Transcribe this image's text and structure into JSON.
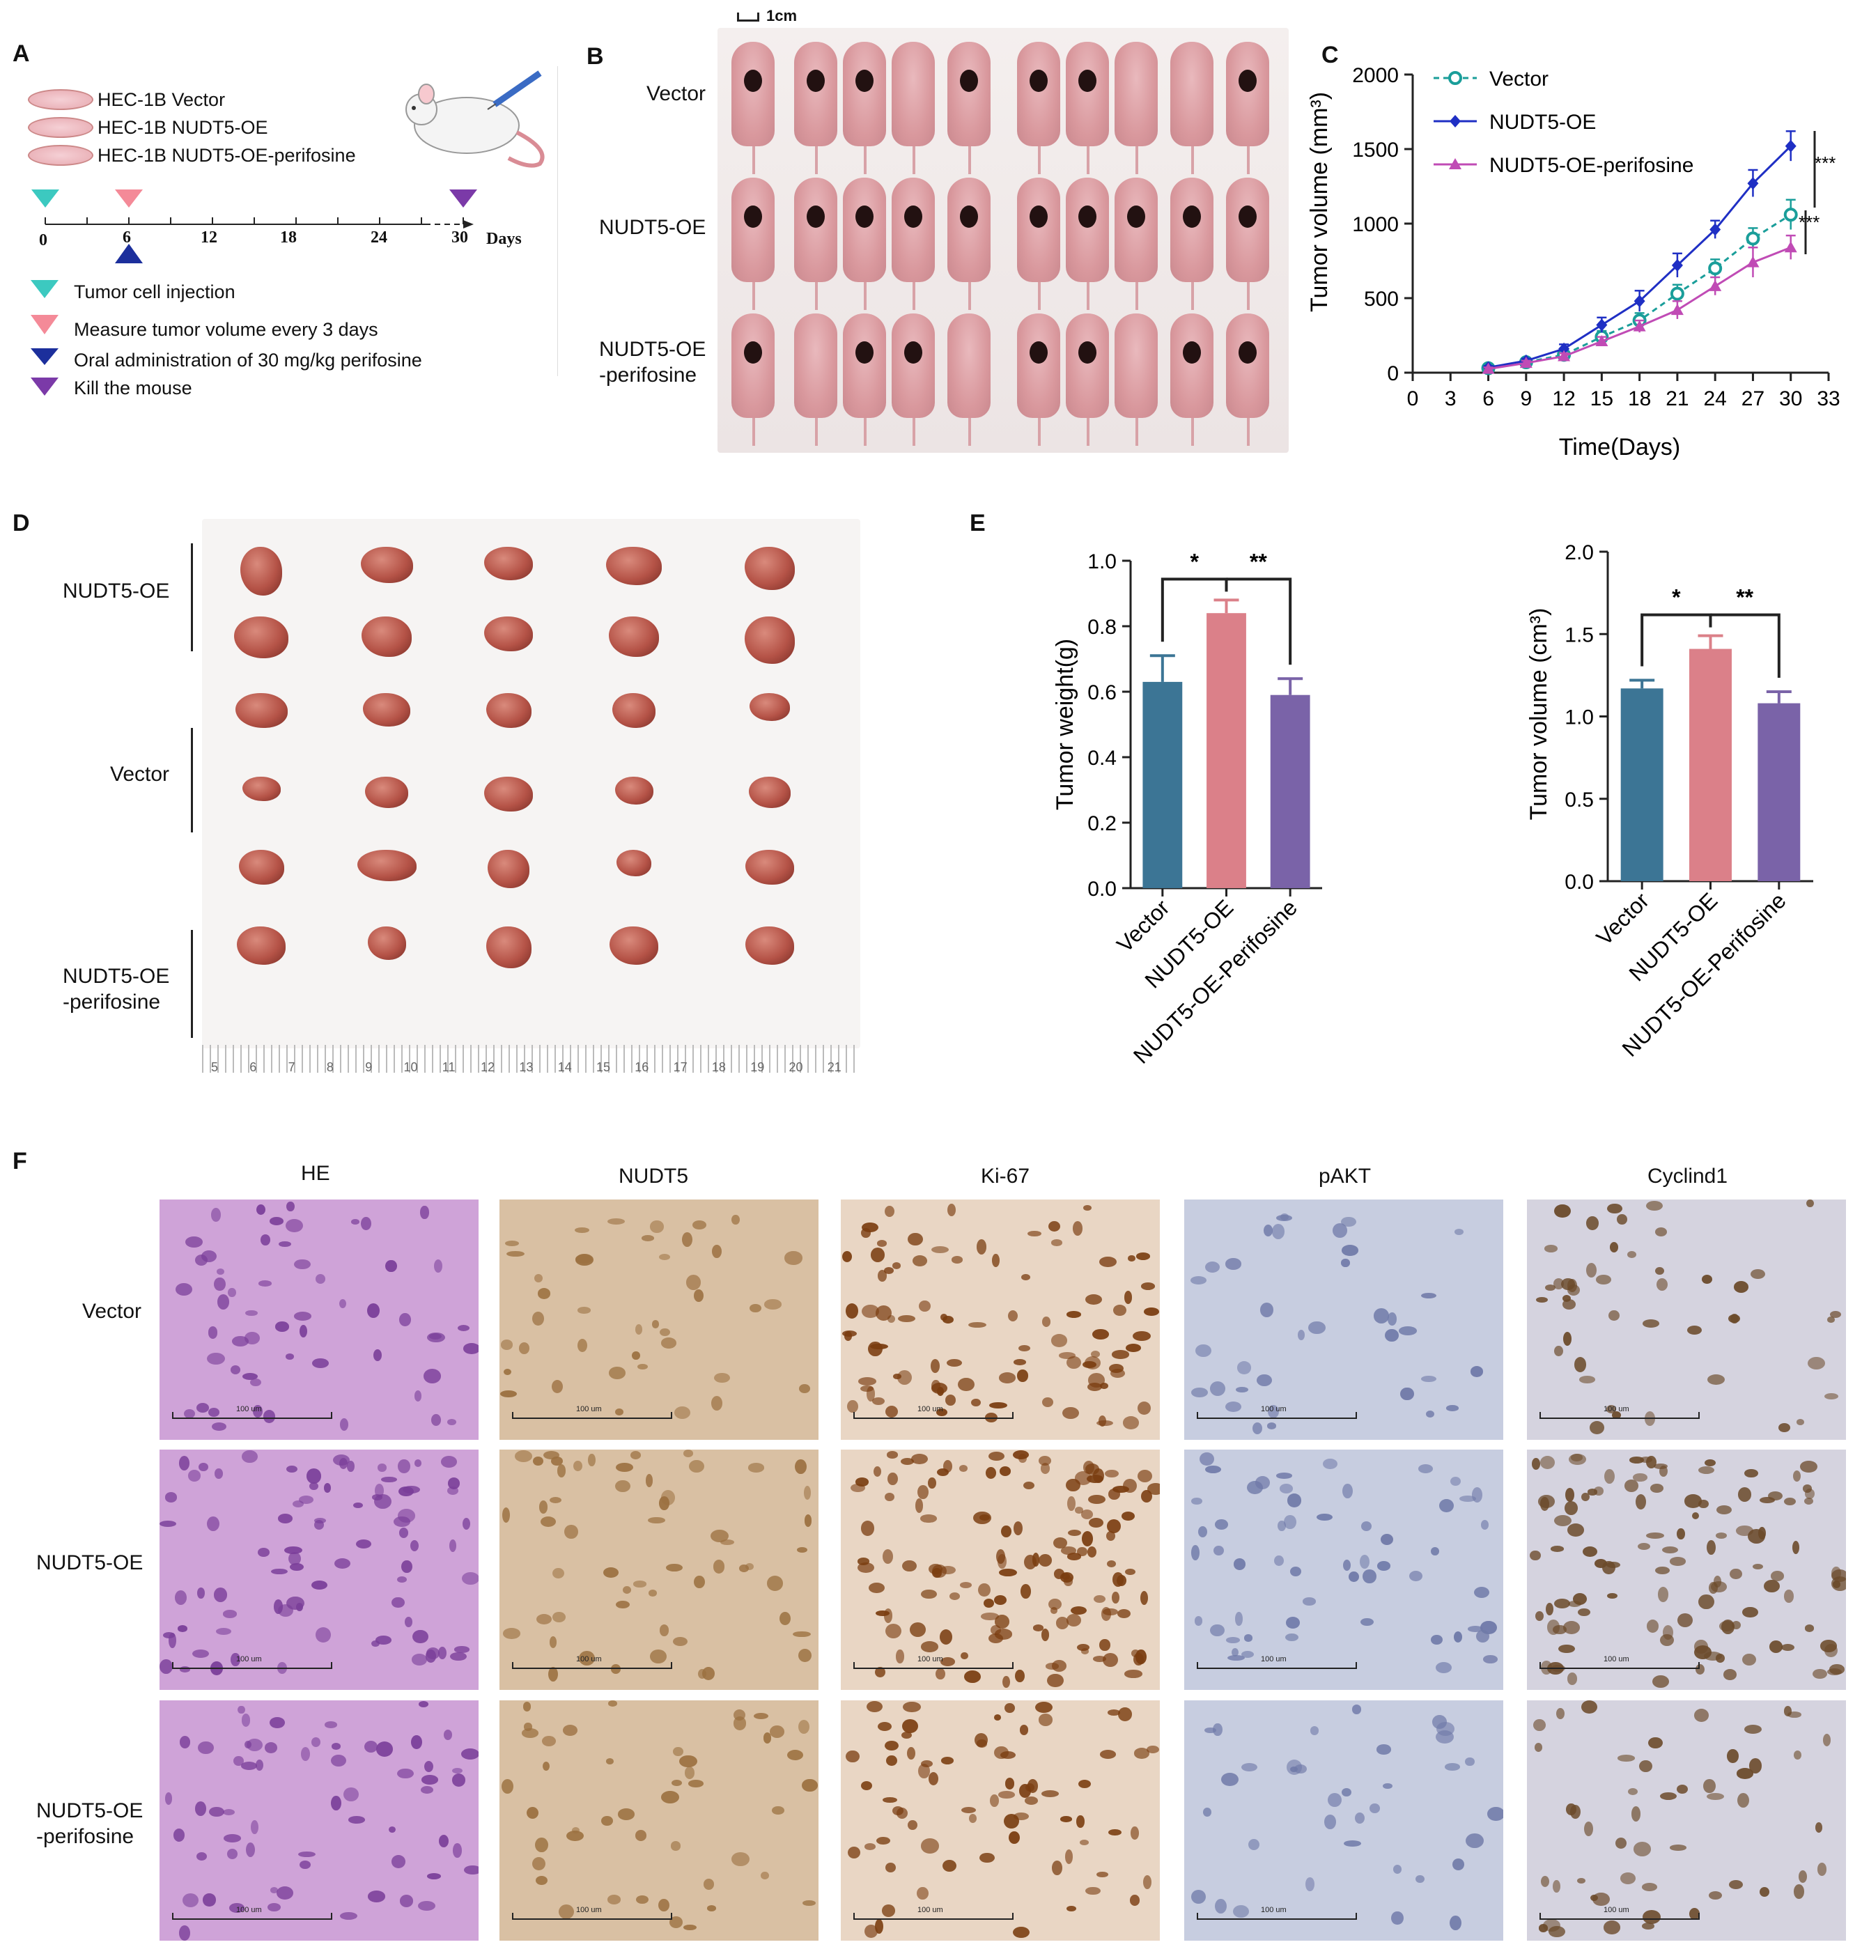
{
  "panel_letters": {
    "A": "A",
    "B": "B",
    "C": "C",
    "D": "D",
    "E": "E",
    "F": "F"
  },
  "panelA": {
    "cells": [
      "HEC-1B  Vector",
      "HEC-1B  NUDT5-OE",
      "HEC-1B  NUDT5-OE-perifosine"
    ],
    "timeline_ticks": [
      "0",
      "6",
      "12",
      "18",
      "24",
      "30"
    ],
    "days_label": "Days",
    "legend": [
      {
        "label": "Tumor cell injection",
        "color": "#3cc9c0"
      },
      {
        "label": "Measure tumor volume every 3 days",
        "color": "#f48a98"
      },
      {
        "label": "Oral administration of 30 mg/kg perifosine",
        "color": "#1c2f9c"
      },
      {
        "label": "Kill the mouse",
        "color": "#7b3aa8"
      }
    ]
  },
  "panelB": {
    "scale": "1cm",
    "rows": [
      "Vector",
      "NUDT5-OE",
      "NUDT5-OE",
      "-perifosine"
    ]
  },
  "panelD": {
    "rows": [
      "NUDT5-OE",
      "Vector",
      "NUDT5-OE",
      "-perifosine"
    ],
    "ruler_ticks": [
      "5",
      "6",
      "7",
      "8",
      "9",
      "10",
      "11",
      "12",
      "13",
      "14",
      "15",
      "16",
      "17",
      "18",
      "19",
      "20",
      "21"
    ]
  },
  "panelF": {
    "columns": [
      "HE",
      "NUDT5",
      "Ki-67",
      "pAKT",
      "Cyclind1"
    ],
    "rows": [
      "Vector",
      "NUDT5-OE",
      "NUDT5-OE",
      "-perifosine"
    ],
    "scale_text": "100 um"
  },
  "chart_data": [
    {
      "type": "line",
      "panel": "C",
      "xlabel": "Time(Days)",
      "ylabel": "Tumor volume (mm³)",
      "xlim": [
        0,
        33
      ],
      "ylim": [
        0,
        2000
      ],
      "xticks": [
        0,
        3,
        6,
        9,
        12,
        15,
        18,
        21,
        24,
        27,
        30,
        33
      ],
      "yticks": [
        0,
        500,
        1000,
        1500,
        2000
      ],
      "x": [
        6,
        9,
        12,
        15,
        18,
        21,
        24,
        27,
        30
      ],
      "series": [
        {
          "name": "Vector",
          "values": [
            30,
            70,
            120,
            240,
            350,
            530,
            700,
            900,
            1060
          ],
          "err": [
            10,
            15,
            25,
            40,
            50,
            60,
            60,
            70,
            100
          ],
          "color": "#1a9e9a",
          "marker": "circle",
          "dashed": true
        },
        {
          "name": "NUDT5-OE",
          "values": [
            35,
            80,
            160,
            320,
            480,
            720,
            960,
            1270,
            1520
          ],
          "err": [
            10,
            15,
            30,
            50,
            70,
            80,
            60,
            90,
            100
          ],
          "color": "#1f2fc4",
          "marker": "diamond",
          "dashed": false
        },
        {
          "name": "NUDT5-OE-perifosine",
          "values": [
            25,
            65,
            110,
            210,
            310,
            420,
            580,
            740,
            840
          ],
          "err": [
            10,
            15,
            20,
            30,
            40,
            60,
            60,
            100,
            80
          ],
          "color": "#c04bb5",
          "marker": "triangle",
          "dashed": false
        }
      ],
      "annotations": [
        "***",
        "***"
      ],
      "legend_position": "top-left"
    },
    {
      "type": "bar",
      "panel": "E-left",
      "ylabel": "Tumor weight(g)",
      "categories": [
        "Vector",
        "NUDT5-OE",
        "NUDT5-OE-Perifosine"
      ],
      "values": [
        0.63,
        0.84,
        0.59
      ],
      "err": [
        0.08,
        0.04,
        0.05
      ],
      "colors": [
        "#3c7595",
        "#db8089",
        "#7a63a8"
      ],
      "ylim": [
        0,
        1.0
      ],
      "yticks": [
        "0.0",
        "0.2",
        "0.4",
        "0.6",
        "0.8",
        "1.0"
      ],
      "annotations": [
        "*",
        "**"
      ]
    },
    {
      "type": "bar",
      "panel": "E-right",
      "ylabel": "Tumor volume (cm³)",
      "categories": [
        "Vector",
        "NUDT5-OE",
        "NUDT5-OE-Perifosine"
      ],
      "values": [
        1.17,
        1.41,
        1.08
      ],
      "err": [
        0.05,
        0.08,
        0.07
      ],
      "colors": [
        "#3c7595",
        "#db8089",
        "#7a63a8"
      ],
      "ylim": [
        0,
        2.0
      ],
      "yticks": [
        "0.0",
        "0.5",
        "1.0",
        "1.5",
        "2.0"
      ],
      "annotations": [
        "*",
        "**"
      ]
    }
  ]
}
